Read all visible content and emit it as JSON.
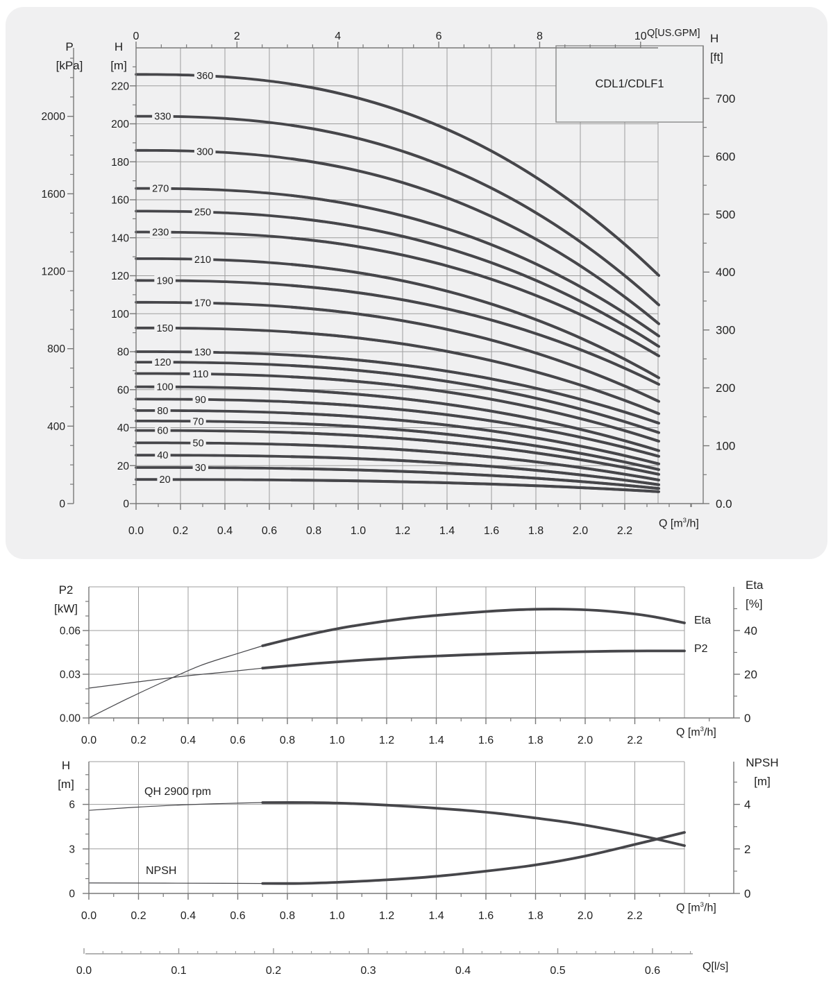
{
  "page": {
    "background": "#ffffff",
    "panel_color": "#f0f0f1",
    "grid_color": "#9d9d9d",
    "axis_color": "#787878",
    "curve_color": "#46464a",
    "text_color": "#1f1f1f",
    "title_box_fill": "#eff0f1",
    "title_box_border": "#8a8a8a"
  },
  "labels": {
    "title_box": "CDL1/CDLF1",
    "p_header_1": "P",
    "p_header_2": "[kPa]",
    "h_m_header_1": "H",
    "h_m_header_2": "[m]",
    "h_ft_header_1": "H",
    "h_ft_header_2": "[ft]",
    "gpm_axis_label": "Q[US.GPM]",
    "q_m3h_pre": "Q [m",
    "q_m3h_sup": "3",
    "q_m3h_suf": "/h]",
    "p2_header_1": "P2",
    "p2_header_2": "[kW]",
    "eta_header_1": "Eta",
    "eta_header_2": "[%]",
    "eta_curve_label": "Eta",
    "p2_curve_label": "P2",
    "h_bot_header_1": "H",
    "h_bot_header_2": "[m]",
    "npsh_header_1": "NPSH",
    "npsh_header_2": "[m]",
    "qh_curve_label": "QH 2900 rpm",
    "npsh_curve_label": "NPSH",
    "q_ls_label": "Q[l/s]"
  },
  "chart_data": [
    {
      "id": "main",
      "type": "line",
      "title": "CDL1/CDLF1",
      "xlabel": "Q [m3/h]",
      "x_range": [
        0,
        2.35
      ],
      "duty_start": 0.7,
      "bottom_axis": {
        "major_labels": [
          "0.0",
          "0.2",
          "0.4",
          "0.6",
          "0.8",
          "1.0",
          "1.2",
          "1.4",
          "1.6",
          "1.8",
          "2.0",
          "2.2"
        ],
        "major_step": 0.2,
        "minor_step": 0.1,
        "minor_max": 2.5
      },
      "top_axis_gpm": {
        "major_labels": [
          "0",
          "2",
          "4",
          "6",
          "8",
          "10"
        ],
        "major_step": 2,
        "minor_step": 0.5,
        "m3h_per_gpm": 0.22712
      },
      "left_axis_h_m": {
        "major_labels": [
          "0",
          "20",
          "40",
          "60",
          "80",
          "100",
          "120",
          "140",
          "160",
          "180",
          "200",
          "220"
        ],
        "major_step": 20,
        "minor_step": 10,
        "max": 240
      },
      "left_axis_p_kpa": {
        "major_labels": [
          "0",
          "400",
          "800",
          "1200",
          "1600",
          "2000"
        ],
        "major_step": 400,
        "minor_step": 100,
        "max": 2300
      },
      "right_axis_h_ft": {
        "major_labels": [
          "0.0",
          "100",
          "200",
          "300",
          "400",
          "500",
          "600",
          "700"
        ],
        "major_step": 100,
        "minor_step": 50,
        "max": 700
      },
      "series_note": "each series: stage curve; shutoff head (m) at Q=0, end head (m) at Q=2.35, label placed at Q=label_q",
      "series": [
        {
          "label": "360",
          "shutoff_m": 226.0,
          "end_m": 120.5,
          "label_q": 0.31
        },
        {
          "label": "330",
          "shutoff_m": 204.0,
          "end_m": 105.0,
          "label_q": 0.12
        },
        {
          "label": "300",
          "shutoff_m": 186.0,
          "end_m": 95.0,
          "label_q": 0.31
        },
        {
          "label": "270",
          "shutoff_m": 166.0,
          "end_m": 88.5,
          "label_q": 0.11
        },
        {
          "label": "250",
          "shutoff_m": 154.0,
          "end_m": 83.0,
          "label_q": 0.3
        },
        {
          "label": "230",
          "shutoff_m": 143.0,
          "end_m": 78.0,
          "label_q": 0.11
        },
        {
          "label": "210",
          "shutoff_m": 129.0,
          "end_m": 66.5,
          "label_q": 0.3
        },
        {
          "label": "190",
          "shutoff_m": 117.5,
          "end_m": 63.0,
          "label_q": 0.13
        },
        {
          "label": "170",
          "shutoff_m": 106.0,
          "end_m": 54.0,
          "label_q": 0.3
        },
        {
          "label": "150",
          "shutoff_m": 92.5,
          "end_m": 47.5,
          "label_q": 0.13
        },
        {
          "label": "130",
          "shutoff_m": 80.0,
          "end_m": 42.5,
          "label_q": 0.3
        },
        {
          "label": "120",
          "shutoff_m": 74.5,
          "end_m": 37.5,
          "label_q": 0.12
        },
        {
          "label": "110",
          "shutoff_m": 68.5,
          "end_m": 33.0,
          "label_q": 0.29
        },
        {
          "label": "100",
          "shutoff_m": 61.5,
          "end_m": 28.0,
          "label_q": 0.13
        },
        {
          "label": "90",
          "shutoff_m": 55.0,
          "end_m": 25.0,
          "label_q": 0.29
        },
        {
          "label": "80",
          "shutoff_m": 49.0,
          "end_m": 21.0,
          "label_q": 0.12
        },
        {
          "label": "70",
          "shutoff_m": 43.5,
          "end_m": 18.0,
          "label_q": 0.28
        },
        {
          "label": "60",
          "shutoff_m": 38.5,
          "end_m": 15.5,
          "label_q": 0.12
        },
        {
          "label": "50",
          "shutoff_m": 32.0,
          "end_m": 12.5,
          "label_q": 0.28
        },
        {
          "label": "40",
          "shutoff_m": 25.5,
          "end_m": 10.0,
          "label_q": 0.12
        },
        {
          "label": "30",
          "shutoff_m": 19.0,
          "end_m": 8.0,
          "label_q": 0.29
        },
        {
          "label": "20",
          "shutoff_m": 12.7,
          "end_m": 6.3,
          "label_q": 0.13
        }
      ]
    },
    {
      "id": "p2_eta",
      "type": "line",
      "x_range": [
        0,
        2.4
      ],
      "duty_start": 0.7,
      "bottom_axis": {
        "major_labels": [
          "0.0",
          "0.2",
          "0.4",
          "0.6",
          "0.8",
          "1.0",
          "1.2",
          "1.4",
          "1.6",
          "1.8",
          "2.0",
          "2.2"
        ],
        "major_step": 0.2,
        "minor_step": 0.1,
        "minor_max": 2.5
      },
      "left_axis_p2_kw": {
        "major_labels": [
          "0.00",
          "0.03",
          "0.06"
        ],
        "major_step": 0.03,
        "minor_step": 0.01,
        "max": 0.09
      },
      "right_axis_eta_pct": {
        "major_labels": [
          "0",
          "20",
          "40"
        ],
        "major_step": 20,
        "minor_step": 10,
        "max": 55
      },
      "series": [
        {
          "name": "Eta",
          "unit": "%",
          "points": [
            [
              0,
              0
            ],
            [
              0.15,
              8.5
            ],
            [
              0.3,
              16.5
            ],
            [
              0.45,
              24
            ],
            [
              0.6,
              29.5
            ],
            [
              0.7,
              33
            ],
            [
              0.85,
              37.2
            ],
            [
              1.0,
              40.8
            ],
            [
              1.15,
              43.6
            ],
            [
              1.3,
              45.8
            ],
            [
              1.45,
              47.4
            ],
            [
              1.6,
              48.7
            ],
            [
              1.75,
              49.6
            ],
            [
              1.9,
              49.8
            ],
            [
              2.05,
              49.2
            ],
            [
              2.2,
              47.6
            ],
            [
              2.3,
              45.8
            ],
            [
              2.4,
              43.5
            ]
          ]
        },
        {
          "name": "P2",
          "unit": "kW",
          "points": [
            [
              0,
              0.0205
            ],
            [
              0.2,
              0.0248
            ],
            [
              0.4,
              0.029
            ],
            [
              0.55,
              0.0315
            ],
            [
              0.7,
              0.0342
            ],
            [
              0.9,
              0.0372
            ],
            [
              1.1,
              0.0397
            ],
            [
              1.3,
              0.0417
            ],
            [
              1.5,
              0.0432
            ],
            [
              1.7,
              0.0444
            ],
            [
              1.9,
              0.0452
            ],
            [
              2.1,
              0.0458
            ],
            [
              2.25,
              0.046
            ],
            [
              2.4,
              0.046
            ]
          ]
        }
      ]
    },
    {
      "id": "qh_npsh",
      "type": "line",
      "x_range": [
        0,
        2.4
      ],
      "duty_start": 0.7,
      "bottom_axis": {
        "major_labels": [
          "0.0",
          "0.2",
          "0.4",
          "0.6",
          "0.8",
          "1.0",
          "1.2",
          "1.4",
          "1.6",
          "1.8",
          "2.0",
          "2.2"
        ],
        "major_step": 0.2,
        "minor_step": 0.1,
        "minor_max": 2.5
      },
      "left_axis_h_m": {
        "major_labels": [
          "0",
          "3",
          "6"
        ],
        "major_step": 3,
        "minor_step": 1,
        "max": 8
      },
      "right_axis_npsh_m": {
        "major_labels": [
          "0",
          "2",
          "4"
        ],
        "major_step": 2,
        "minor_step": 1,
        "max": 5
      },
      "series": [
        {
          "name": "QH 2900 rpm",
          "unit": "m",
          "points": [
            [
              0,
              5.6
            ],
            [
              0.2,
              5.82
            ],
            [
              0.4,
              5.98
            ],
            [
              0.55,
              6.06
            ],
            [
              0.7,
              6.12
            ],
            [
              0.9,
              6.12
            ],
            [
              1.05,
              6.06
            ],
            [
              1.2,
              5.95
            ],
            [
              1.35,
              5.8
            ],
            [
              1.5,
              5.62
            ],
            [
              1.65,
              5.39
            ],
            [
              1.8,
              5.08
            ],
            [
              1.95,
              4.74
            ],
            [
              2.1,
              4.3
            ],
            [
              2.25,
              3.8
            ],
            [
              2.4,
              3.22
            ]
          ]
        },
        {
          "name": "NPSH",
          "unit": "m",
          "points": [
            [
              0,
              0.47
            ],
            [
              0.3,
              0.465
            ],
            [
              0.55,
              0.455
            ],
            [
              0.7,
              0.45
            ],
            [
              0.85,
              0.45
            ],
            [
              1.0,
              0.5
            ],
            [
              1.2,
              0.61
            ],
            [
              1.4,
              0.77
            ],
            [
              1.6,
              1.0
            ],
            [
              1.8,
              1.28
            ],
            [
              2.0,
              1.68
            ],
            [
              2.2,
              2.2
            ],
            [
              2.4,
              2.74
            ]
          ]
        }
      ]
    },
    {
      "id": "ls_axis",
      "type": "axis",
      "xlabel": "Q[l/s]",
      "major_labels": [
        "0.0",
        "0.1",
        "0.2",
        "0.3",
        "0.4",
        "0.5",
        "0.6"
      ],
      "major_step": 0.1,
      "minor_step": 0.02,
      "minor_max": 0.64
    }
  ]
}
